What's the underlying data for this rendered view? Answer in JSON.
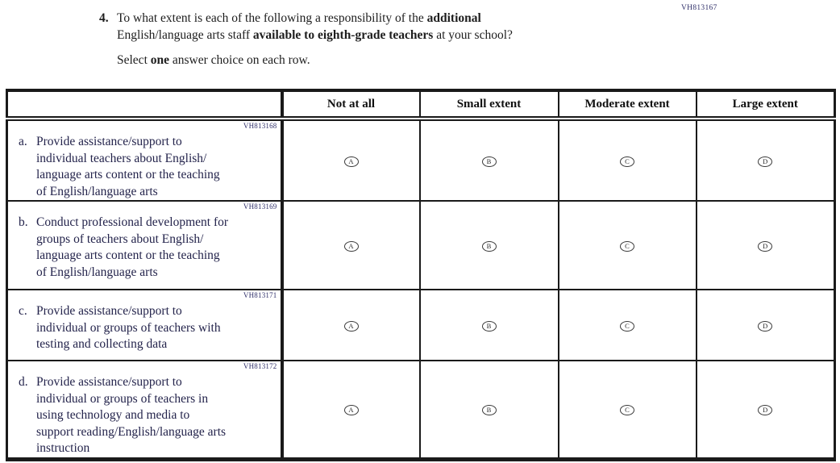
{
  "header_code": "VH813167",
  "question": {
    "number": "4.",
    "line1": [
      {
        "t": "To what extent is each of the following a responsibility of the "
      },
      {
        "t": "additional",
        "b": true
      }
    ],
    "line2": [
      {
        "t": "English/language arts staff "
      },
      {
        "t": "available to eighth-grade teachers",
        "b": true
      },
      {
        "t": " at your school?"
      }
    ],
    "instruction": [
      {
        "t": "Select "
      },
      {
        "t": "one",
        "b": true
      },
      {
        "t": " answer choice on each row."
      }
    ]
  },
  "table": {
    "column_headers": [
      "Not at all",
      "Small extent",
      "Moderate extent",
      "Large extent"
    ],
    "option_letters": [
      "A",
      "B",
      "C",
      "D"
    ],
    "rows": [
      {
        "code": "VH813168",
        "label": "a.",
        "lines": [
          "Provide assistance/support to",
          "individual teachers about English/",
          "language arts content or the teaching",
          "of English/language arts"
        ]
      },
      {
        "code": "VH813169",
        "label": "b.",
        "lines": [
          "Conduct professional development for",
          "groups of teachers about English/",
          "language arts content or the teaching",
          "of English/language arts"
        ]
      },
      {
        "code": "VH813171",
        "label": "c.",
        "lines": [
          "Provide assistance/support to",
          "individual or groups of teachers with",
          "testing and collecting data"
        ]
      },
      {
        "code": "VH813172",
        "label": "d.",
        "lines": [
          "Provide assistance/support to",
          "individual or groups of teachers in",
          "using technology and media to",
          "support reading/English/language arts",
          "instruction"
        ]
      }
    ]
  },
  "colors": {
    "border": "#1a1a1a",
    "question_text": "#1d1d1d",
    "stem_text": "#23234b",
    "code_text": "#30306a",
    "background": "#ffffff"
  }
}
